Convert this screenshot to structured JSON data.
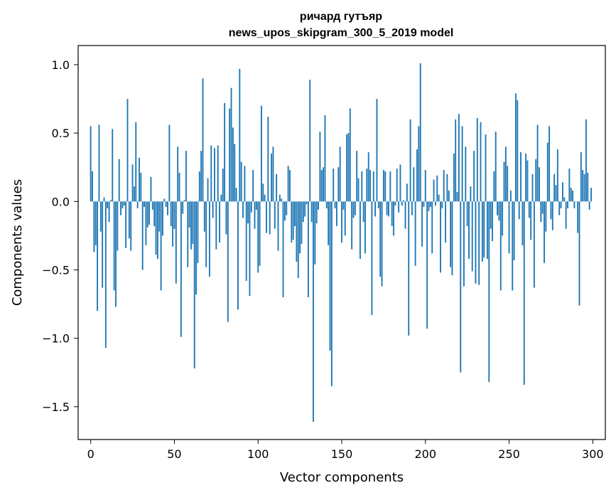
{
  "chart_data": {
    "type": "bar",
    "title": "ричард гутъяр",
    "subtitle": "news_upos_skipgram_300_5_2019 model",
    "xlabel": "Vector components",
    "ylabel": "Components values",
    "xlim": [
      -7.5,
      307.5
    ],
    "ylim": [
      -1.74,
      1.14
    ],
    "xticks": [
      0,
      50,
      100,
      150,
      200,
      250,
      300
    ],
    "xtick_labels": [
      "0",
      "50",
      "100",
      "150",
      "200",
      "250",
      "300"
    ],
    "yticks": [
      -1.5,
      -1.0,
      -0.5,
      0.0,
      0.5,
      1.0
    ],
    "ytick_labels": [
      "−1.5",
      "−1.0",
      "−0.5",
      "0.0",
      "0.5",
      "1.0"
    ],
    "grid": false,
    "bar_color": "#1f77b4",
    "x": "components 0..299",
    "values": [
      0.55,
      0.22,
      -0.37,
      -0.32,
      -0.8,
      0.56,
      -0.22,
      -0.63,
      0.03,
      -1.07,
      -0.05,
      -0.15,
      0.01,
      0.53,
      -0.65,
      -0.77,
      -0.36,
      0.31,
      -0.1,
      -0.05,
      -0.03,
      -0.34,
      0.75,
      -0.27,
      -0.36,
      0.27,
      0.11,
      0.58,
      -0.05,
      0.32,
      0.21,
      -0.5,
      -0.04,
      -0.32,
      -0.19,
      -0.17,
      0.18,
      -0.06,
      -0.18,
      -0.39,
      -0.42,
      -0.22,
      -0.65,
      -0.25,
      0.02,
      -0.04,
      -0.1,
      0.56,
      -0.18,
      -0.33,
      -0.2,
      -0.6,
      0.4,
      0.21,
      -0.99,
      -0.09,
      0.01,
      0.37,
      -0.48,
      -0.19,
      -0.35,
      -0.31,
      -1.22,
      -0.68,
      -0.45,
      0.22,
      0.37,
      0.9,
      -0.22,
      -0.48,
      0.17,
      -0.55,
      0.41,
      -0.12,
      0.39,
      -0.35,
      0.41,
      -0.3,
      0.05,
      0.24,
      0.72,
      -0.24,
      -0.88,
      0.68,
      0.83,
      0.54,
      0.42,
      0.1,
      -0.79,
      0.97,
      0.29,
      -0.12,
      0.26,
      -0.58,
      -0.16,
      -0.69,
      -0.08,
      0.23,
      -0.2,
      -0.06,
      -0.52,
      -0.47,
      0.7,
      0.13,
      0.05,
      -0.23,
      0.62,
      -0.24,
      0.35,
      0.4,
      -0.2,
      0.2,
      -0.36,
      0.05,
      0.02,
      -0.7,
      -0.14,
      -0.1,
      0.26,
      0.23,
      -0.3,
      -0.28,
      -0.18,
      -0.44,
      -0.56,
      -0.38,
      -0.31,
      -0.15,
      -0.11,
      -0.02,
      -0.7,
      0.89,
      -0.15,
      -1.61,
      -0.46,
      -0.16,
      -0.06,
      0.51,
      0.23,
      0.25,
      0.63,
      -0.05,
      -0.32,
      -1.09,
      -1.35,
      0.24,
      -0.05,
      -0.18,
      0.25,
      0.4,
      -0.3,
      -0.06,
      -0.25,
      0.49,
      0.5,
      0.68,
      -0.35,
      -0.12,
      -0.1,
      0.37,
      0.17,
      -0.42,
      0.22,
      -0.15,
      -0.38,
      0.24,
      0.36,
      0.23,
      -0.83,
      0.22,
      -0.11,
      0.75,
      -0.05,
      -0.55,
      -0.62,
      0.23,
      0.22,
      -0.1,
      -0.11,
      0.22,
      -0.18,
      -0.25,
      -0.03,
      0.24,
      -0.08,
      0.27,
      -0.03,
      0.01,
      -0.2,
      0.13,
      -0.98,
      0.6,
      -0.1,
      0.25,
      -0.47,
      0.38,
      0.55,
      1.01,
      -0.33,
      -0.04,
      0.23,
      -0.93,
      -0.07,
      -0.04,
      -0.38,
      0.16,
      -0.03,
      0.19,
      0.05,
      -0.52,
      -0.05,
      0.23,
      -0.3,
      0.2,
      0.08,
      -0.48,
      -0.54,
      0.35,
      0.6,
      0.07,
      0.64,
      -1.25,
      0.55,
      -0.62,
      0.4,
      -0.18,
      -0.42,
      0.11,
      -0.51,
      0.37,
      -0.6,
      0.61,
      -0.61,
      0.58,
      -0.44,
      -0.41,
      0.49,
      -0.42,
      -1.32,
      -0.2,
      -0.29,
      0.22,
      0.51,
      -0.1,
      -0.14,
      -0.65,
      -0.25,
      0.29,
      0.4,
      0.26,
      -0.38,
      0.08,
      -0.65,
      -0.43,
      0.79,
      0.74,
      -0.13,
      0.36,
      -0.32,
      -1.34,
      0.35,
      0.3,
      -0.12,
      -0.28,
      0.2,
      -0.63,
      0.31,
      0.56,
      0.25,
      -0.15,
      -0.09,
      -0.45,
      -0.22,
      0.43,
      0.55,
      -0.13,
      -0.21,
      0.2,
      0.12,
      0.38,
      -0.1,
      -0.05,
      0.14,
      0.03,
      -0.2,
      -0.05,
      0.24,
      0.1,
      0.08,
      -0.05,
      0.0,
      -0.23,
      -0.76,
      0.36,
      0.23,
      0.2,
      0.6,
      0.21,
      -0.06,
      0.1
    ]
  }
}
